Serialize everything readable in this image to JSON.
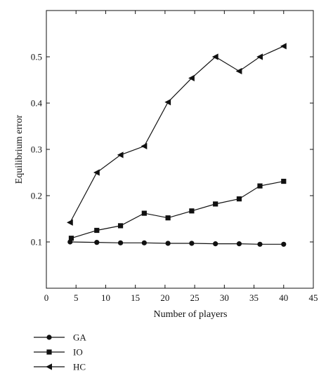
{
  "chart_data": {
    "type": "line",
    "title": "",
    "xlabel": "Number of players",
    "ylabel": "Equilibrium error",
    "xlim": [
      0,
      45
    ],
    "ylim": [
      0,
      0.6
    ],
    "xticks": [
      0,
      5,
      10,
      15,
      20,
      25,
      30,
      35,
      40,
      45
    ],
    "yticks": [
      0.1,
      0.2,
      0.3,
      0.4,
      0.5
    ],
    "xtick_labels": [
      "0",
      "5",
      "10",
      "15",
      "20",
      "25",
      "30",
      "35",
      "40",
      "45"
    ],
    "ytick_labels": [
      "0.1",
      "0.2",
      "0.3",
      "0.4",
      "0.5"
    ],
    "grid": false,
    "legend_position": "bottom-left, below plot",
    "series": [
      {
        "name": "GA",
        "marker": "circle",
        "color": "#111111",
        "x": [
          4,
          8.5,
          12.5,
          16.5,
          20.5,
          24.5,
          28.5,
          32.5,
          36,
          40
        ],
        "values": [
          0.1,
          0.099,
          0.098,
          0.098,
          0.097,
          0.097,
          0.096,
          0.096,
          0.095,
          0.095
        ]
      },
      {
        "name": "IO",
        "marker": "square",
        "color": "#111111",
        "x": [
          4.2,
          8.5,
          12.5,
          16.5,
          20.5,
          24.5,
          28.5,
          32.5,
          36,
          40
        ],
        "values": [
          0.108,
          0.125,
          0.135,
          0.162,
          0.152,
          0.167,
          0.182,
          0.193,
          0.221,
          0.231
        ]
      },
      {
        "name": "HC",
        "marker": "triangle-left",
        "color": "#111111",
        "x": [
          4,
          8.5,
          12.5,
          16.5,
          20.5,
          24.5,
          28.5,
          32.5,
          36,
          40
        ],
        "values": [
          0.142,
          0.25,
          0.288,
          0.307,
          0.402,
          0.454,
          0.5,
          0.469,
          0.5,
          0.523
        ]
      }
    ]
  }
}
